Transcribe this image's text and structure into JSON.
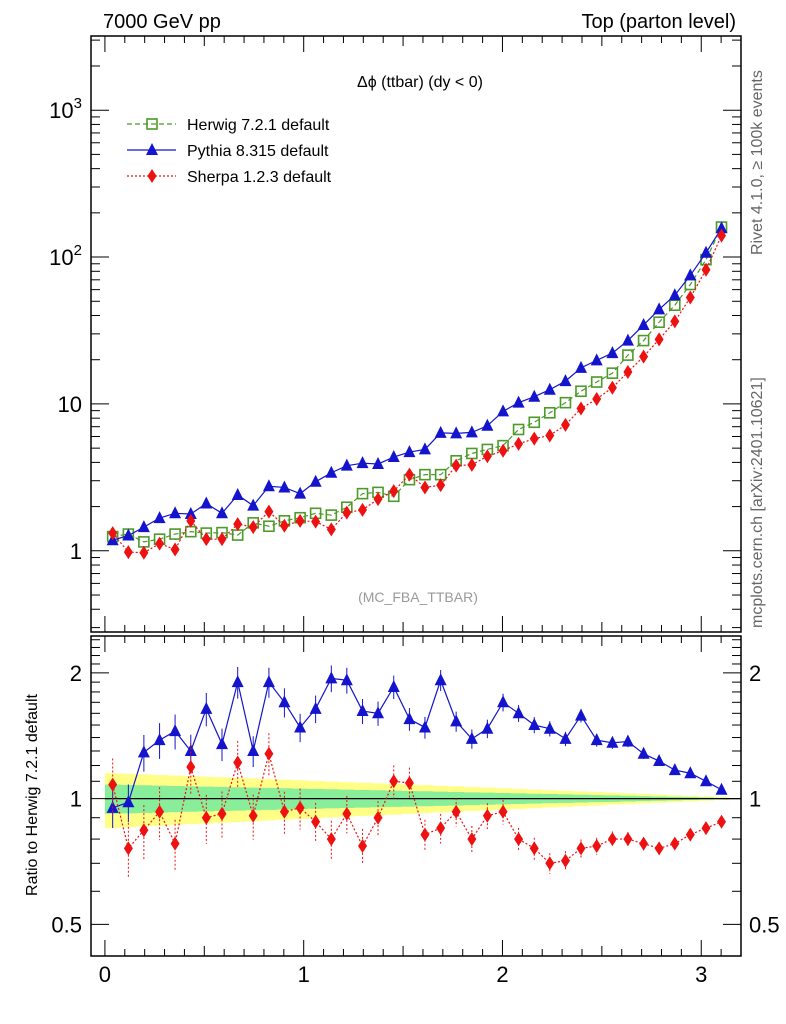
{
  "header": {
    "left": "7000 GeV pp",
    "right": "Top (parton level)"
  },
  "side_text": {
    "rivet": "Rivet 4.1.0, ≥ 100k events",
    "mcplots": "mcplots.cern.ch [arXiv:2401.10621]"
  },
  "chart_data": [
    {
      "type": "scatter",
      "panel": "main",
      "title": "Δϕ (ttbar) (dy < 0)",
      "watermark": "(MC_FBA_TTBAR)",
      "yscale": "log",
      "xlim": [
        -0.07,
        3.2
      ],
      "ylim": [
        0.28,
        3200
      ],
      "yticks": [
        {
          "value": 1000,
          "base": "10",
          "exp": "3"
        },
        {
          "value": 100,
          "base": "10",
          "exp": "2"
        },
        {
          "value": 10,
          "base": "10",
          "exp": ""
        },
        {
          "value": 1,
          "base": "1",
          "exp": ""
        }
      ],
      "legend_position": "top-left",
      "x": [
        0.039,
        0.118,
        0.196,
        0.275,
        0.353,
        0.432,
        0.51,
        0.589,
        0.668,
        0.746,
        0.825,
        0.903,
        0.982,
        1.06,
        1.139,
        1.217,
        1.296,
        1.374,
        1.453,
        1.532,
        1.61,
        1.689,
        1.767,
        1.846,
        1.924,
        2.003,
        2.081,
        2.16,
        2.238,
        2.317,
        2.395,
        2.474,
        2.553,
        2.631,
        2.71,
        2.788,
        2.867,
        2.945,
        3.024,
        3.102
      ],
      "series": [
        {
          "name": "Herwig 7.2.1 default",
          "color": "#4c9a2a",
          "marker": "open-square",
          "line": "dashed",
          "values": [
            1.25,
            1.3,
            1.15,
            1.2,
            1.3,
            1.35,
            1.32,
            1.33,
            1.28,
            1.55,
            1.47,
            1.6,
            1.68,
            1.8,
            1.75,
            1.98,
            2.45,
            2.5,
            2.35,
            3.05,
            3.3,
            3.3,
            4.1,
            4.6,
            4.9,
            5.2,
            6.7,
            7.5,
            8.7,
            10.2,
            12.2,
            14.1,
            16.2,
            21.5,
            27,
            36,
            47,
            65,
            96,
            160
          ]
        },
        {
          "name": "Pythia 8.315 default",
          "color": "#1414cc",
          "marker": "filled-triangle",
          "line": "solid",
          "values": [
            1.18,
            1.27,
            1.45,
            1.67,
            1.8,
            1.78,
            2.1,
            1.8,
            2.4,
            2.03,
            2.75,
            2.7,
            2.45,
            2.95,
            3.4,
            3.8,
            3.95,
            3.9,
            4.35,
            4.7,
            4.9,
            6.35,
            6.3,
            6.4,
            7.1,
            8.9,
            10.2,
            11.2,
            12.5,
            14.3,
            17.6,
            19.8,
            22.2,
            27,
            34.5,
            44,
            55,
            75,
            107,
            157
          ]
        },
        {
          "name": "Sherpa 1.2.3 default",
          "color": "#ee1111",
          "marker": "filled-diamond",
          "line": "dotted",
          "values": [
            1.32,
            0.98,
            0.97,
            1.12,
            1.02,
            1.6,
            1.2,
            1.2,
            1.52,
            1.45,
            1.85,
            1.48,
            1.6,
            1.58,
            1.4,
            1.82,
            1.9,
            2.25,
            2.55,
            3.3,
            2.7,
            2.8,
            3.8,
            3.85,
            4.4,
            4.8,
            5.35,
            5.8,
            6.1,
            7.2,
            9.3,
            10.8,
            12.9,
            16.5,
            21,
            27.5,
            36.5,
            53,
            82,
            140
          ]
        }
      ]
    },
    {
      "type": "scatter",
      "panel": "ratio",
      "ylabel": "Ratio to Herwig 7.2.1 default",
      "yscale": "log",
      "ylim": [
        0.42,
        2.45
      ],
      "yticks": [
        2,
        1,
        0.5
      ],
      "xticks": [
        0,
        1,
        2,
        3
      ],
      "reference_band": {
        "inner_half_width_start": 0.08,
        "outer_half_width_start": 0.15,
        "inner_half_width_end": 0.004,
        "outer_half_width_end": 0.008,
        "inner_color": "#88ee99",
        "outer_color": "#ffff88"
      },
      "series": [
        {
          "name": "Pythia 8.315 default",
          "values": [
            0.95,
            0.98,
            1.29,
            1.38,
            1.45,
            1.3,
            1.64,
            1.35,
            1.9,
            1.3,
            1.9,
            1.7,
            1.48,
            1.64,
            1.94,
            1.92,
            1.62,
            1.6,
            1.85,
            1.55,
            1.48,
            1.92,
            1.53,
            1.39,
            1.47,
            1.7,
            1.6,
            1.5,
            1.47,
            1.39,
            1.58,
            1.38,
            1.36,
            1.37,
            1.28,
            1.23,
            1.17,
            1.15,
            1.1,
            1.05
          ]
        },
        {
          "name": "Sherpa 1.2.3 default",
          "values": [
            1.08,
            0.76,
            0.84,
            0.93,
            0.78,
            1.19,
            0.9,
            0.92,
            1.22,
            0.91,
            1.28,
            0.93,
            0.95,
            0.88,
            0.8,
            0.92,
            0.77,
            0.9,
            1.1,
            1.09,
            0.82,
            0.85,
            0.93,
            0.8,
            0.91,
            0.93,
            0.8,
            0.76,
            0.7,
            0.71,
            0.76,
            0.77,
            0.8,
            0.8,
            0.78,
            0.76,
            0.78,
            0.82,
            0.85,
            0.88
          ]
        }
      ]
    }
  ]
}
